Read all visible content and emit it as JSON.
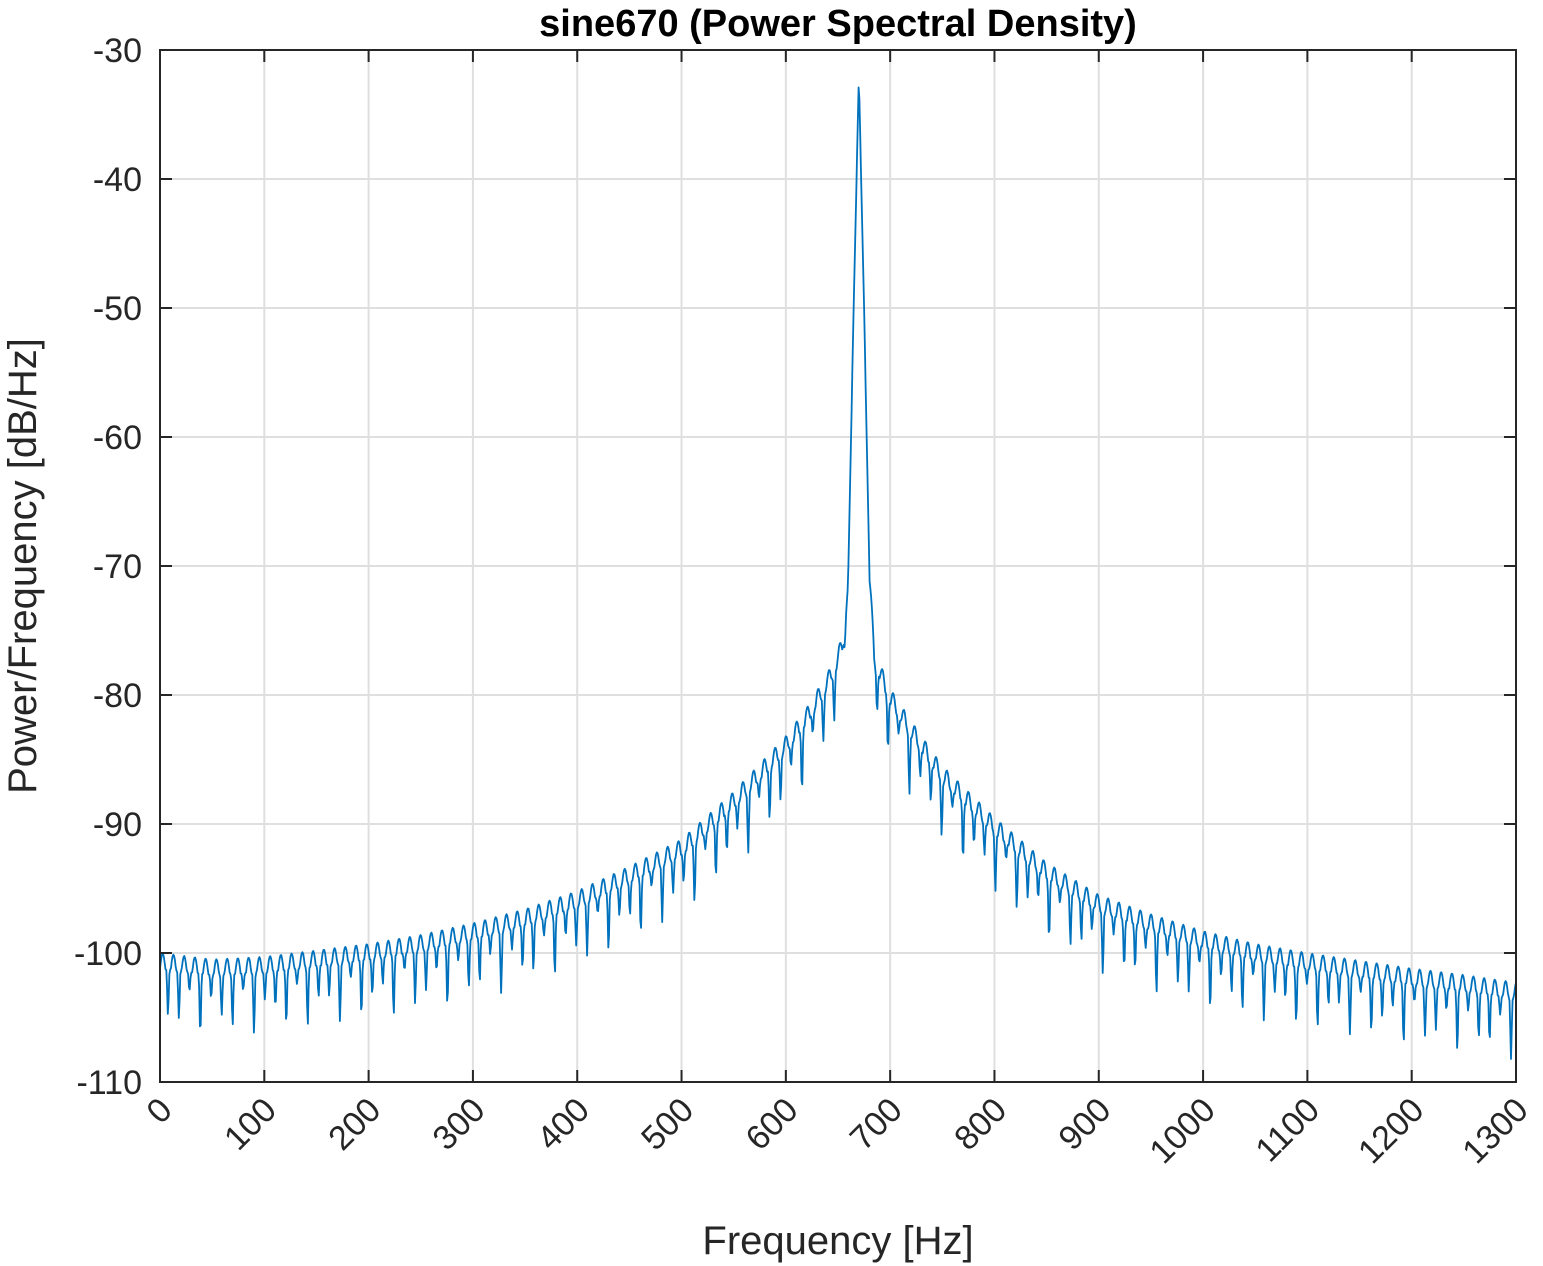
{
  "chart_data": {
    "type": "line",
    "title": "sine670 (Power Spectral Density)",
    "xlabel": "Frequency [Hz]",
    "ylabel": "Power/Frequency [dB/Hz]",
    "xlim": [
      0,
      1300
    ],
    "ylim": [
      -110,
      -30
    ],
    "xticks": [
      0,
      100,
      200,
      300,
      400,
      500,
      600,
      700,
      800,
      900,
      1000,
      1100,
      1200,
      1300
    ],
    "yticks": [
      -30,
      -40,
      -50,
      -60,
      -70,
      -80,
      -90,
      -100,
      -110
    ],
    "xtick_labels": [
      "0",
      "100",
      "200",
      "300",
      "400",
      "500",
      "600",
      "700",
      "800",
      "900",
      "1000",
      "1100",
      "1200",
      "1300"
    ],
    "ytick_labels": [
      "-30",
      "-40",
      "-50",
      "-60",
      "-70",
      "-80",
      "-90",
      "-100",
      "-110"
    ],
    "grid": true,
    "line_color": "#0072BD",
    "peak": {
      "x": 670,
      "y": -32
    },
    "series": [
      {
        "x": [
          0,
          50,
          100,
          150,
          200,
          250,
          300,
          350,
          400,
          450,
          500,
          550,
          600,
          620,
          640,
          650,
          655,
          660,
          665,
          670,
          675,
          680,
          685,
          690,
          700,
          720,
          750,
          800,
          850,
          900,
          950,
          1000,
          1050,
          1100,
          1150,
          1200,
          1250,
          1300
        ],
        "y": [
          -100,
          -100.5,
          -100.3,
          -99.8,
          -99.3,
          -98.6,
          -97.7,
          -96.6,
          -95.2,
          -93.3,
          -91.2,
          -87.5,
          -83.2,
          -81.0,
          -78.3,
          -76.5,
          -75.0,
          -70.0,
          -50.0,
          -32.0,
          -50.0,
          -70.0,
          -76.5,
          -77.5,
          -79.5,
          -82.0,
          -85.5,
          -89.5,
          -93.0,
          -95.5,
          -97.0,
          -98.3,
          -99.3,
          -100.0,
          -100.6,
          -101.2,
          -101.7,
          -102.3
        ]
      }
    ]
  }
}
